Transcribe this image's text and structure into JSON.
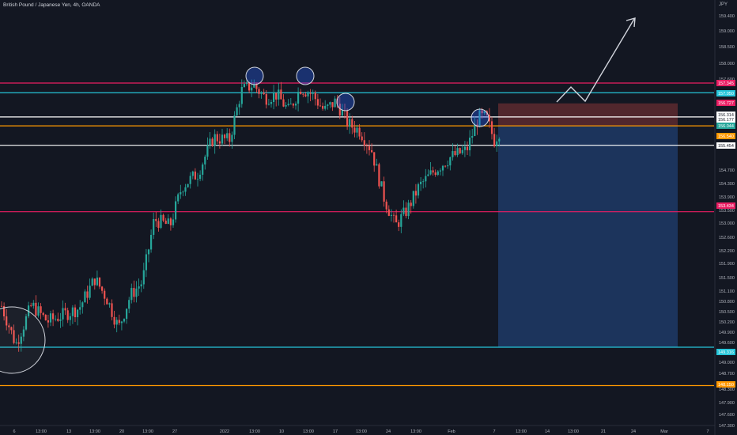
{
  "header": {
    "title": "British Pound / Japanese Yen, 4h, OANDA",
    "currency": "JPY"
  },
  "colors": {
    "background": "#131722",
    "bull": "#26a69a",
    "bear": "#ef5350",
    "pink_line": "#e91e63",
    "cyan_line": "#26c6da",
    "orange_line": "#ff9800",
    "white_line": "#ffffff",
    "target_zone": "#1e3a66",
    "stop_zone": "#5d2a2f"
  },
  "chart_data": {
    "type": "candlestick",
    "symbol": "GBPJPY",
    "timeframe": "4h",
    "broker": "OANDA",
    "y_ticks": [
      "159.400",
      "159.000",
      "158.500",
      "158.000",
      "157.600",
      "156.400",
      "154.700",
      "154.300",
      "153.900",
      "153.500",
      "153.000",
      "152.600",
      "152.200",
      "151.900",
      "151.500",
      "151.100",
      "150.800",
      "150.500",
      "150.200",
      "149.900",
      "149.600",
      "149.000",
      "148.700",
      "148.300",
      "147.900",
      "147.600",
      "147.300"
    ],
    "x_ticks": [
      "6",
      "13:00",
      "13",
      "13:00",
      "20",
      "13:00",
      "27",
      "2022",
      "13:00",
      "10",
      "13:00",
      "17",
      "13:00",
      "24",
      "13:00",
      "Feb",
      "7",
      "13:00",
      "14",
      "13:00",
      "21",
      "24",
      "Mar",
      "7"
    ],
    "horizontal_levels": [
      {
        "price": 157.345,
        "label": "157.345",
        "color": "pink"
      },
      {
        "price": 157.05,
        "label": "157.050",
        "color": "cyan"
      },
      {
        "price": 156.314,
        "label": "156.314",
        "color": "white"
      },
      {
        "price": 156.044,
        "label": "156.044",
        "color": "orange"
      },
      {
        "price": 155.454,
        "label": "155.454",
        "color": "white"
      },
      {
        "price": 153.434,
        "label": "153.434",
        "color": "pink"
      },
      {
        "price": 149.316,
        "label": "149.316",
        "color": "cyan"
      },
      {
        "price": 148.15,
        "label": "148.150",
        "color": "orange"
      }
    ],
    "price_tags": [
      {
        "label": "156.727",
        "color": "pink"
      },
      {
        "label": "156.177",
        "color": "white"
      },
      {
        "label": "156.044",
        "color": "green"
      },
      {
        "label": "156.540",
        "color": "orange"
      },
      {
        "label": "149.316",
        "color": "cyan"
      }
    ],
    "position_tool": {
      "entry": 156.044,
      "stop": 156.727,
      "target": 149.316
    },
    "annotations": [
      "head-and-shoulders circles",
      "projected upward arrow",
      "ellipse on low"
    ]
  }
}
